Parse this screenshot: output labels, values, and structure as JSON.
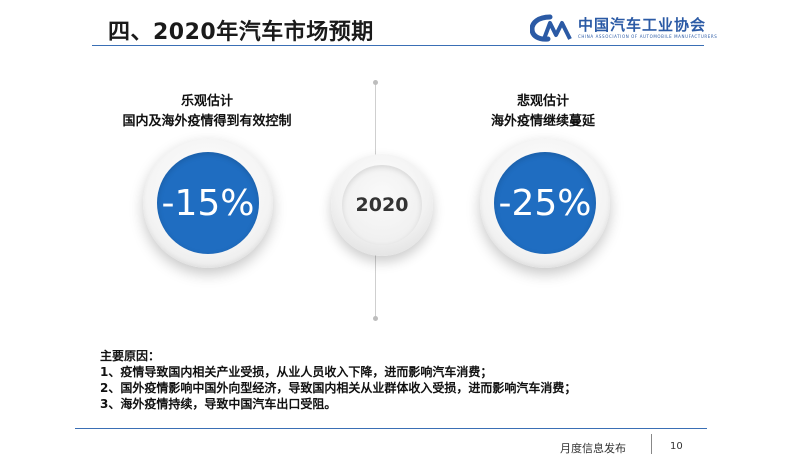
{
  "header": {
    "title": "四、2020年汽车市场预期",
    "logo_text": "中国汽车工业协会",
    "logo_subtext": "CHINA ASSOCIATION OF AUTOMOBILE MANUFACTURERS"
  },
  "colors": {
    "accent_blue": "#1f6dc1",
    "rule_blue": "#3a6fb5"
  },
  "scenarios": {
    "optimistic": {
      "title_line1": "乐观估计",
      "title_line2": "国内及海外疫情得到有效控制",
      "value": "-15%"
    },
    "pessimistic": {
      "title_line1": "悲观估计",
      "title_line2": "海外疫情继续蔓延",
      "value": "-25%"
    },
    "year": "2020"
  },
  "reasons": {
    "heading": "主要原因：",
    "items": [
      "1、疫情导致国内相关产业受损，从业人员收入下降，进而影响汽车消费；",
      "2、国外疫情影响中国外向型经济，导致国内相关从业群体收入受损，进而影响汽车消费；",
      "3、海外疫情持续，导致中国汽车出口受阻。"
    ]
  },
  "footer": {
    "label": "月度信息发布",
    "page": "10"
  }
}
